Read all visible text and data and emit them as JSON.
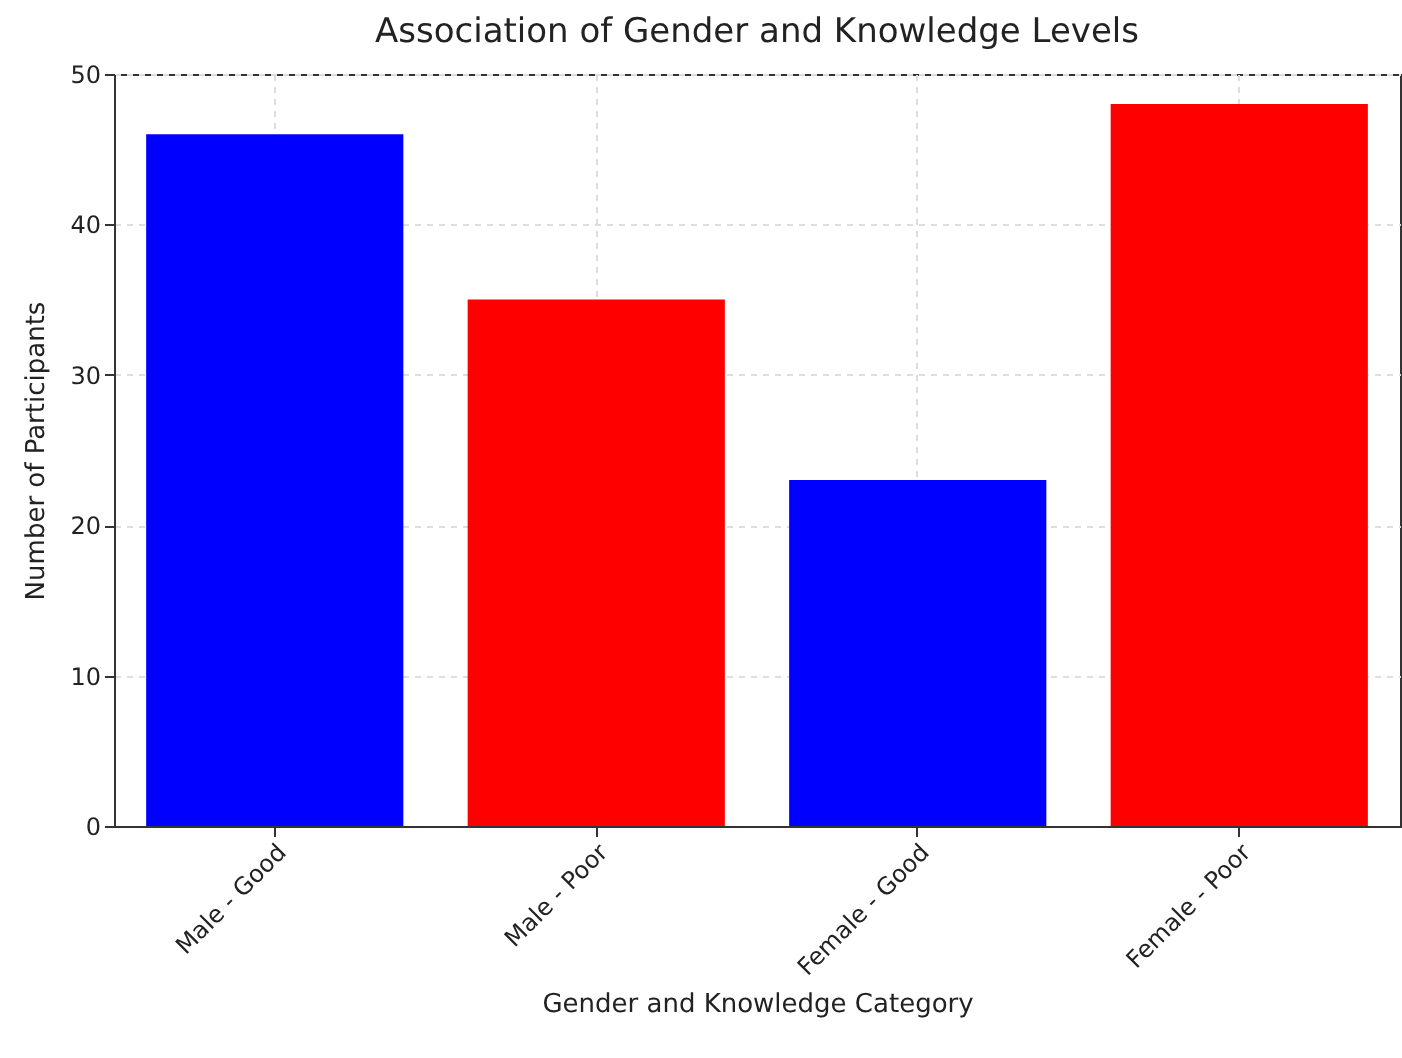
{
  "chart_data": {
    "type": "bar",
    "title": "Association of Gender and Knowledge Levels",
    "xlabel": "Gender and Knowledge Category",
    "ylabel": "Number of Participants",
    "categories": [
      "Male - Good",
      "Male - Poor",
      "Female - Good",
      "Female - Poor"
    ],
    "values": [
      46,
      35,
      23,
      48
    ],
    "colors": [
      "#0000ff",
      "#ff0000",
      "#0000ff",
      "#ff0000"
    ],
    "ylim": [
      0,
      50
    ],
    "yticks": [
      0,
      10,
      20,
      30,
      40,
      50
    ],
    "grid": true
  }
}
